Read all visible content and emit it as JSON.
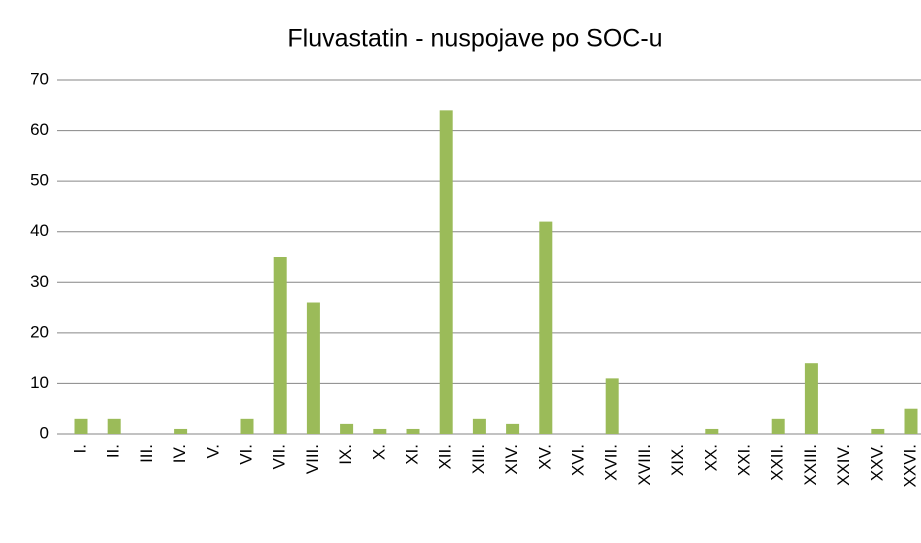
{
  "chart_data": {
    "type": "bar",
    "title": "Fluvastatin - nuspojave po SOC-u",
    "categories": [
      "I.",
      "II.",
      "III.",
      "IV.",
      "V.",
      "VI.",
      "VII.",
      "VIII.",
      "IX.",
      "X.",
      "XI.",
      "XII.",
      "XIII.",
      "XIV.",
      "XV.",
      "XVI.",
      "XVII.",
      "XVIII.",
      "XIX.",
      "XX.",
      "XXI.",
      "XXII.",
      "XXIII.",
      "XXIV.",
      "XXV.",
      "XXVI."
    ],
    "values": [
      3,
      3,
      0,
      1,
      0,
      3,
      35,
      26,
      2,
      1,
      1,
      64,
      3,
      2,
      42,
      0,
      11,
      0,
      0,
      1,
      0,
      3,
      14,
      0,
      1,
      5
    ],
    "color": "#9bbb59",
    "ylim": [
      0,
      70
    ],
    "yticks": [
      0,
      10,
      20,
      30,
      40,
      50,
      60,
      70
    ],
    "grid": true
  }
}
